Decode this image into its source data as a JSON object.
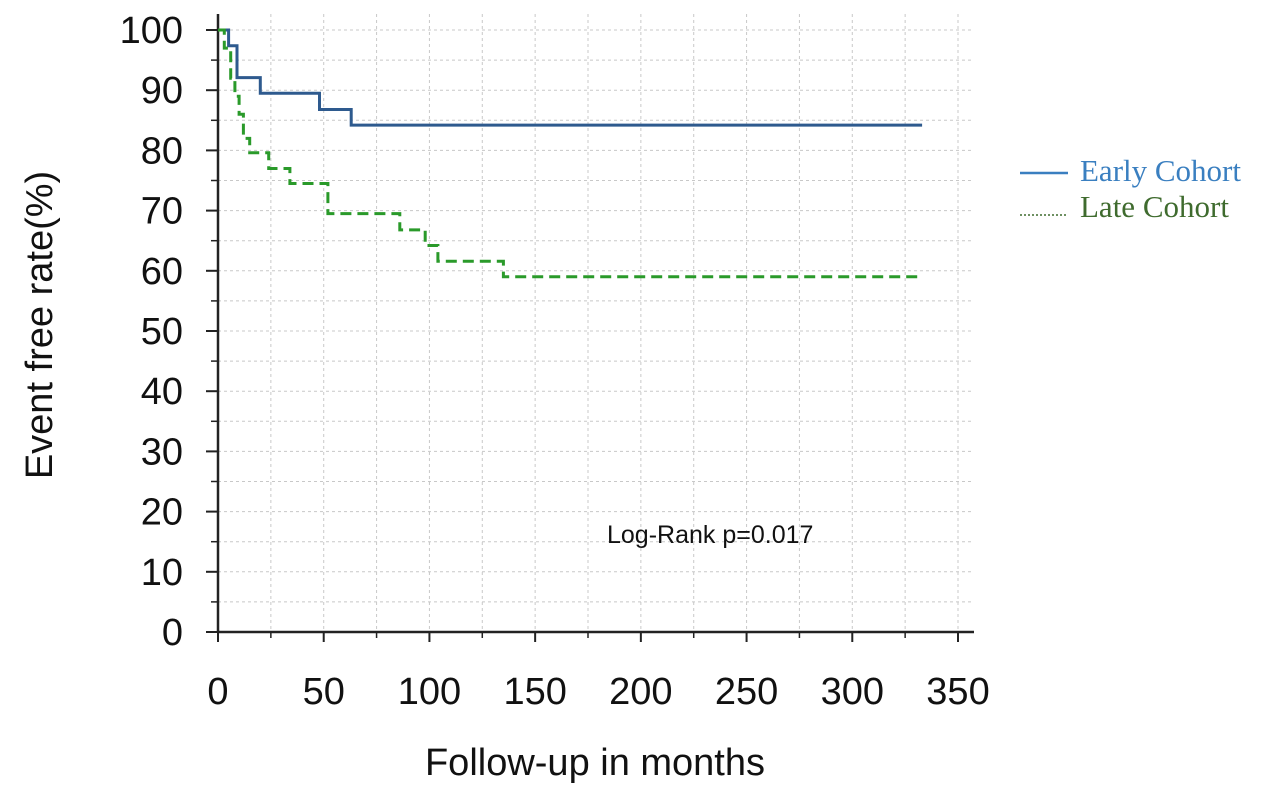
{
  "chart_data": {
    "type": "line",
    "xlabel": "Follow-up in months",
    "ylabel": "Event free rate(%)",
    "xlim": [
      0,
      350
    ],
    "ylim": [
      0,
      100
    ],
    "xticks": [
      0,
      50,
      100,
      150,
      200,
      250,
      300,
      350
    ],
    "yticks": [
      0,
      10,
      20,
      30,
      40,
      50,
      60,
      70,
      80,
      90,
      100
    ],
    "grid": true,
    "legend_position": "right",
    "annotation": "Log-Rank p=0.017",
    "series": [
      {
        "name": "Early Cohort",
        "color": "#2e5a8e",
        "legend_color": "#3a7fc0",
        "style": "solid",
        "step": true,
        "points": [
          [
            0,
            100
          ],
          [
            5,
            100
          ],
          [
            5,
            97.4
          ],
          [
            9,
            97.4
          ],
          [
            9,
            92.1
          ],
          [
            20,
            92.1
          ],
          [
            20,
            89.5
          ],
          [
            48,
            89.5
          ],
          [
            48,
            86.8
          ],
          [
            63,
            86.8
          ],
          [
            63,
            84.2
          ],
          [
            333,
            84.2
          ]
        ]
      },
      {
        "name": "Late Cohort",
        "color": "#2a9a2a",
        "legend_color": "#3f6b2e",
        "style": "dashed",
        "step": true,
        "points": [
          [
            0,
            100
          ],
          [
            3,
            100
          ],
          [
            3,
            97
          ],
          [
            6,
            97
          ],
          [
            6,
            92
          ],
          [
            8,
            92
          ],
          [
            8,
            89
          ],
          [
            10,
            89
          ],
          [
            10,
            86
          ],
          [
            12,
            86
          ],
          [
            12,
            82
          ],
          [
            15,
            82
          ],
          [
            15,
            79.6
          ],
          [
            24,
            79.6
          ],
          [
            24,
            77
          ],
          [
            34,
            77
          ],
          [
            34,
            74.5
          ],
          [
            52,
            74.5
          ],
          [
            52,
            69.5
          ],
          [
            86,
            69.5
          ],
          [
            86,
            66.8
          ],
          [
            98,
            66.8
          ],
          [
            98,
            64.2
          ],
          [
            104,
            64.2
          ],
          [
            104,
            61.6
          ],
          [
            135,
            61.6
          ],
          [
            135,
            59
          ],
          [
            333,
            59
          ]
        ]
      }
    ]
  }
}
